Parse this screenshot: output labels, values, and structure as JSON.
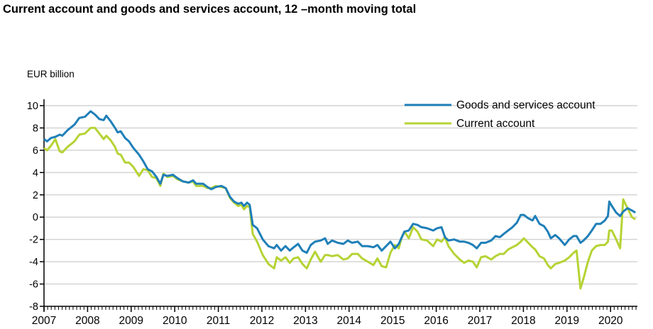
{
  "chart_data": {
    "type": "line",
    "title": "Current account and goods and services account, 12 –month moving total",
    "ylabel": "EUR billion",
    "xlabel": "",
    "ylim": [
      -8,
      10
    ],
    "xlim": [
      2007,
      2020.62
    ],
    "yticks": [
      10,
      8,
      6,
      4,
      2,
      0,
      -2,
      -4,
      -6,
      -8
    ],
    "ytick_labels": [
      "10",
      "8",
      "6",
      "4",
      "2",
      "0",
      "-2",
      "-4",
      "-6",
      "-8"
    ],
    "xticks": [
      2007,
      2008,
      2009,
      2010,
      2011,
      2012,
      2013,
      2014,
      2015,
      2016,
      2017,
      2018,
      2019,
      2020
    ],
    "xtick_labels": [
      "2007",
      "2008",
      "2009",
      "2010",
      "2011",
      "2012",
      "2013",
      "2014",
      "2015",
      "2016",
      "2017",
      "2018",
      "2019",
      "2020"
    ],
    "grid": true,
    "legend_position": "top-right",
    "x": [
      2007.0,
      2007.07,
      2007.16,
      2007.26,
      2007.36,
      2007.42,
      2007.54,
      2007.7,
      2007.81,
      2007.94,
      2008.07,
      2008.17,
      2008.27,
      2008.37,
      2008.43,
      2008.53,
      2008.63,
      2008.69,
      2008.76,
      2008.86,
      2008.95,
      2009.05,
      2009.18,
      2009.28,
      2009.38,
      2009.48,
      2009.58,
      2009.67,
      2009.74,
      2009.83,
      2009.96,
      2010.06,
      2010.19,
      2010.32,
      2010.42,
      2010.49,
      2010.65,
      2010.75,
      2010.84,
      2010.94,
      2011.07,
      2011.17,
      2011.27,
      2011.36,
      2011.46,
      2011.53,
      2011.59,
      2011.66,
      2011.72,
      2011.79,
      2011.89,
      2012.02,
      2012.15,
      2012.28,
      2012.34,
      2012.44,
      2012.54,
      2012.64,
      2012.73,
      2012.83,
      2012.93,
      2013.03,
      2013.12,
      2013.22,
      2013.35,
      2013.45,
      2013.51,
      2013.61,
      2013.74,
      2013.87,
      2013.97,
      2014.07,
      2014.2,
      2014.3,
      2014.43,
      2014.56,
      2014.65,
      2014.75,
      2014.85,
      2014.95,
      2015.05,
      2015.14,
      2015.21,
      2015.27,
      2015.37,
      2015.47,
      2015.57,
      2015.66,
      2015.79,
      2015.93,
      2016.02,
      2016.12,
      2016.2,
      2016.28,
      2016.41,
      2016.54,
      2016.64,
      2016.74,
      2016.84,
      2016.93,
      2017.03,
      2017.13,
      2017.26,
      2017.36,
      2017.46,
      2017.55,
      2017.65,
      2017.75,
      2017.85,
      2017.94,
      2018.01,
      2018.11,
      2018.21,
      2018.27,
      2018.37,
      2018.47,
      2018.56,
      2018.63,
      2018.73,
      2018.82,
      2018.95,
      2019.05,
      2019.15,
      2019.22,
      2019.31,
      2019.38,
      2019.48,
      2019.57,
      2019.67,
      2019.77,
      2019.87,
      2019.94,
      2019.97,
      2020.03,
      2020.13,
      2020.22,
      2020.29,
      2020.39,
      2020.49,
      2020.57
    ],
    "series": [
      {
        "name": "Goods and services account",
        "color": "#1f7fb8",
        "values": [
          7.0,
          6.8,
          7.1,
          7.2,
          7.4,
          7.3,
          7.8,
          8.3,
          8.9,
          9.0,
          9.5,
          9.2,
          8.8,
          8.7,
          9.1,
          8.6,
          8.0,
          7.6,
          7.7,
          7.1,
          6.8,
          6.2,
          5.6,
          5.0,
          4.3,
          4.1,
          3.6,
          3.0,
          3.8,
          3.7,
          3.8,
          3.5,
          3.2,
          3.1,
          3.3,
          3.0,
          3.0,
          2.7,
          2.5,
          2.7,
          2.8,
          2.6,
          1.8,
          1.4,
          1.2,
          1.3,
          1.0,
          1.3,
          1.1,
          -0.7,
          -1.0,
          -2.0,
          -2.6,
          -2.8,
          -2.5,
          -3.0,
          -2.6,
          -3.0,
          -2.7,
          -2.4,
          -3.0,
          -3.2,
          -2.5,
          -2.2,
          -2.1,
          -1.9,
          -2.4,
          -2.1,
          -2.3,
          -2.4,
          -2.1,
          -2.3,
          -2.2,
          -2.6,
          -2.6,
          -2.7,
          -2.5,
          -3.0,
          -2.6,
          -2.2,
          -2.8,
          -2.4,
          -1.8,
          -1.3,
          -1.2,
          -0.6,
          -0.7,
          -0.9,
          -1.0,
          -1.2,
          -1.0,
          -0.9,
          -1.8,
          -2.1,
          -2.0,
          -2.2,
          -2.2,
          -2.3,
          -2.5,
          -2.8,
          -2.3,
          -2.3,
          -2.1,
          -1.7,
          -1.8,
          -1.5,
          -1.2,
          -0.9,
          -0.5,
          0.2,
          0.2,
          -0.1,
          -0.3,
          0.1,
          -0.6,
          -0.8,
          -1.3,
          -1.9,
          -1.6,
          -1.9,
          -2.5,
          -2.0,
          -1.7,
          -1.7,
          -2.3,
          -2.1,
          -1.7,
          -1.2,
          -0.6,
          -0.6,
          -0.3,
          0.1,
          1.4,
          1.0,
          0.4,
          0.1,
          0.5,
          0.8,
          0.6,
          0.4
        ]
      },
      {
        "name": "Current account",
        "color": "#b5d334",
        "values": [
          6.2,
          6.0,
          6.4,
          7.0,
          5.9,
          5.8,
          6.3,
          6.8,
          7.4,
          7.5,
          8.0,
          8.0,
          7.5,
          7.0,
          7.3,
          6.9,
          6.3,
          5.7,
          5.6,
          4.9,
          4.9,
          4.5,
          3.7,
          4.3,
          4.2,
          3.6,
          3.5,
          2.8,
          3.9,
          3.6,
          3.7,
          3.4,
          3.2,
          3.1,
          3.2,
          2.8,
          2.8,
          2.6,
          2.6,
          2.8,
          2.7,
          2.6,
          1.7,
          1.3,
          1.0,
          1.1,
          0.7,
          1.0,
          0.9,
          -1.5,
          -2.2,
          -3.4,
          -4.2,
          -4.6,
          -3.6,
          -3.9,
          -3.6,
          -4.1,
          -3.7,
          -3.6,
          -4.2,
          -4.6,
          -3.8,
          -3.1,
          -4.0,
          -3.4,
          -3.4,
          -3.5,
          -3.4,
          -3.8,
          -3.7,
          -3.3,
          -3.3,
          -3.7,
          -4.0,
          -4.3,
          -3.7,
          -4.4,
          -4.5,
          -3.2,
          -2.5,
          -2.8,
          -1.8,
          -1.3,
          -1.9,
          -0.9,
          -1.3,
          -2.0,
          -2.1,
          -2.6,
          -2.0,
          -2.2,
          -1.8,
          -2.6,
          -3.3,
          -3.8,
          -4.1,
          -3.9,
          -4.0,
          -4.5,
          -3.6,
          -3.5,
          -3.8,
          -3.5,
          -3.3,
          -3.3,
          -2.9,
          -2.7,
          -2.5,
          -2.2,
          -1.9,
          -2.3,
          -2.7,
          -2.9,
          -3.5,
          -3.7,
          -4.3,
          -4.6,
          -4.2,
          -4.1,
          -3.9,
          -3.6,
          -3.2,
          -3.0,
          -6.4,
          -5.5,
          -4.0,
          -3.0,
          -2.6,
          -2.5,
          -2.5,
          -2.2,
          -1.2,
          -1.2,
          -2.0,
          -2.8,
          1.6,
          0.8,
          0.0,
          -0.2
        ]
      }
    ]
  }
}
